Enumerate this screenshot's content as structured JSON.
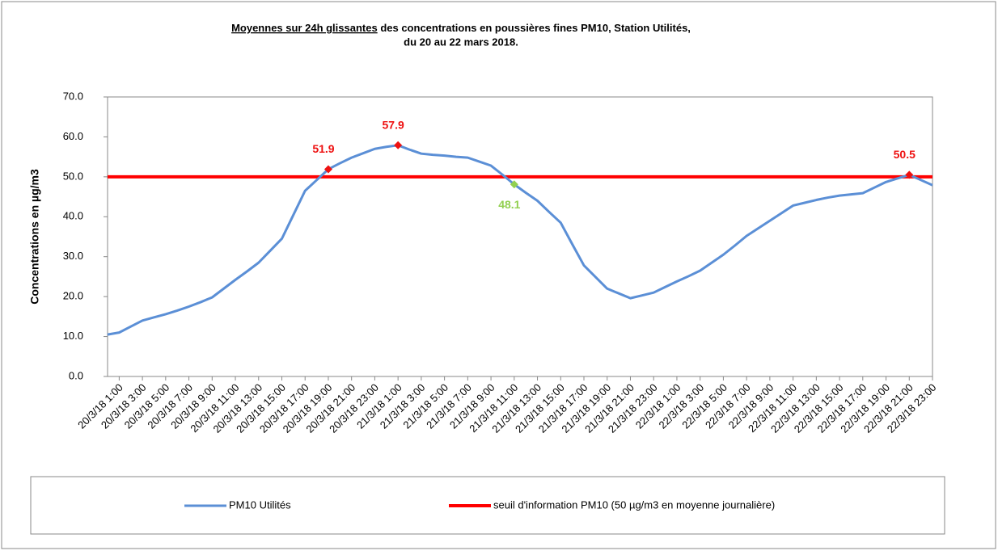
{
  "chart_data": {
    "type": "line",
    "title_underlined": "Moyennes sur 24h glissantes",
    "title": " des concentrations en poussières fines PM10, Station Utilités,",
    "subtitle": "du 20 au 22 mars 2018.",
    "y_label": "Concentrations en µg/m3",
    "categories": [
      null,
      "20/3/18 1:00",
      null,
      "20/3/18 3:00",
      null,
      "20/3/18 5:00",
      null,
      "20/3/18 7:00",
      null,
      "20/3/18 9:00",
      null,
      "20/3/18 11:00",
      null,
      "20/3/18 13:00",
      null,
      "20/3/18 15:00",
      null,
      "20/3/18 17:00",
      null,
      "20/3/18 19:00",
      null,
      "20/3/18 21:00",
      null,
      "20/3/18 23:00",
      null,
      "21/3/18 1:00",
      null,
      "21/3/18 3:00",
      null,
      "21/3/18 5:00",
      null,
      "21/3/18 7:00",
      null,
      "21/3/18 9:00",
      null,
      "21/3/18 11:00",
      null,
      "21/3/18 13:00",
      null,
      "21/3/18 15:00",
      null,
      "21/3/18 17:00",
      null,
      "21/3/18 19:00",
      null,
      "21/3/18 21:00",
      null,
      "21/3/18 23:00",
      null,
      "22/3/18 1:00",
      null,
      "22/3/18 3:00",
      null,
      "22/3/18 5:00",
      null,
      "22/3/18 7:00",
      null,
      "22/3/18 9:00",
      null,
      "22/3/18 11:00",
      null,
      "22/3/18 13:00",
      null,
      "22/3/18 15:00",
      null,
      "22/3/18 17:00",
      null,
      "22/3/18 19:00",
      null,
      "22/3/18 21:00",
      null,
      "22/3/18 23:00"
    ],
    "series": [
      {
        "name": "PM10 Utilités",
        "color": "#5b8fd6",
        "width": 3,
        "values": [
          10.5,
          11.0,
          12.5,
          14.0,
          14.8,
          15.6,
          16.5,
          17.5,
          18.6,
          19.8,
          22.0,
          24.2,
          26.3,
          28.5,
          31.5,
          34.5,
          40.5,
          46.5,
          49.2,
          51.9,
          53.4,
          54.8,
          55.9,
          57.0,
          57.5,
          57.9,
          56.8,
          55.8,
          55.5,
          55.3,
          55.0,
          54.8,
          53.8,
          52.8,
          50.5,
          48.1,
          46.0,
          44.0,
          41.2,
          38.5,
          33.1,
          27.8,
          24.9,
          22.0,
          20.8,
          19.6,
          20.3,
          21.0,
          22.4,
          23.8,
          25.1,
          26.5,
          28.5,
          30.5,
          32.8,
          35.2,
          37.1,
          39.0,
          40.9,
          42.8,
          43.5,
          44.2,
          44.8,
          45.3,
          45.6,
          45.9,
          47.3,
          48.7,
          49.6,
          50.5,
          49.2,
          47.9
        ],
        "highlights": [
          {
            "index": 19,
            "color": "#ee1111"
          },
          {
            "index": 25,
            "color": "#ee1111"
          },
          {
            "index": 35,
            "color": "#92d050"
          },
          {
            "index": 69,
            "color": "#ee1111"
          }
        ]
      },
      {
        "name": "seuil d'information PM10 (50 µg/m3 en moyenne journalière)",
        "color": "#ff0000",
        "width": 4,
        "values": [
          50,
          50,
          50,
          50,
          50,
          50,
          50,
          50,
          50,
          50,
          50,
          50,
          50,
          50,
          50,
          50,
          50,
          50,
          50,
          50,
          50,
          50,
          50,
          50,
          50,
          50,
          50,
          50,
          50,
          50,
          50,
          50,
          50,
          50,
          50,
          50,
          50,
          50,
          50,
          50,
          50,
          50,
          50,
          50,
          50,
          50,
          50,
          50,
          50,
          50,
          50,
          50,
          50,
          50,
          50,
          50,
          50,
          50,
          50,
          50,
          50,
          50,
          50,
          50,
          50,
          50,
          50,
          50,
          50,
          50,
          50,
          50
        ]
      }
    ],
    "ylim": [
      0,
      70
    ],
    "yticks": [
      {
        "value": 0,
        "label": "0.0"
      },
      {
        "value": 10,
        "label": "10.0"
      },
      {
        "value": 20,
        "label": "20.0"
      },
      {
        "value": 30,
        "label": "30.0"
      },
      {
        "value": 40,
        "label": "40.0"
      },
      {
        "value": 50,
        "label": "50.0"
      },
      {
        "value": 60,
        "label": "60.0"
      },
      {
        "value": 70,
        "label": "70.0"
      }
    ],
    "grid": false
  }
}
